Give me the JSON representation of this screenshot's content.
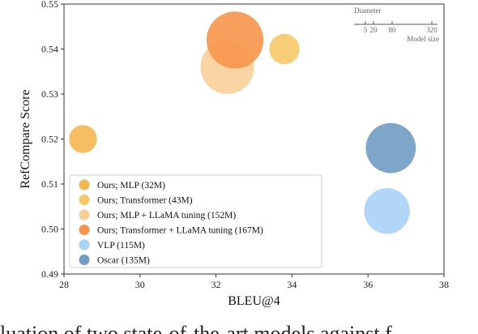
{
  "chart_data": {
    "type": "scatter",
    "subtype": "bubble",
    "xlabel": "BLEU@4",
    "ylabel": "RefCompare Score",
    "xlim": [
      28,
      38
    ],
    "ylim": [
      0.49,
      0.55
    ],
    "xticks": [
      "28",
      "30",
      "32",
      "34",
      "36",
      "38"
    ],
    "yticks": [
      "0.49",
      "0.50",
      "0.51",
      "0.52",
      "0.53",
      "0.54",
      "0.55"
    ],
    "grid": false,
    "legend_position": "lower-left",
    "series": [
      {
        "name": "Ours; MLP (32M)",
        "color": "#f5b74f",
        "model_size": 32,
        "x": 28.5,
        "y": 0.52
      },
      {
        "name": "Ours; Transformer (43M)",
        "color": "#f6c868",
        "model_size": 43,
        "x": 33.8,
        "y": 0.54
      },
      {
        "name": "Ours; MLP + LLaMA tuning (152M)",
        "color": "#f9cf98",
        "model_size": 152,
        "x": 32.3,
        "y": 0.536
      },
      {
        "name": "Ours; Transformer + LLaMA tuning (167M)",
        "color": "#f7954d",
        "model_size": 167,
        "x": 32.5,
        "y": 0.542
      },
      {
        "name": "VLP (115M)",
        "color": "#a8d2f7",
        "model_size": 115,
        "x": 36.5,
        "y": 0.504
      },
      {
        "name": "Oscar (135M)",
        "color": "#6f9cc4",
        "model_size": 135,
        "x": 36.6,
        "y": 0.518
      }
    ],
    "size_legend": {
      "title": "Diameter",
      "ticks": [
        "5",
        "20",
        "80",
        "320"
      ],
      "tick_values": [
        5,
        20,
        80,
        320
      ],
      "label": "Model size"
    }
  },
  "caption": "luation of two state-of-the-art models against f"
}
